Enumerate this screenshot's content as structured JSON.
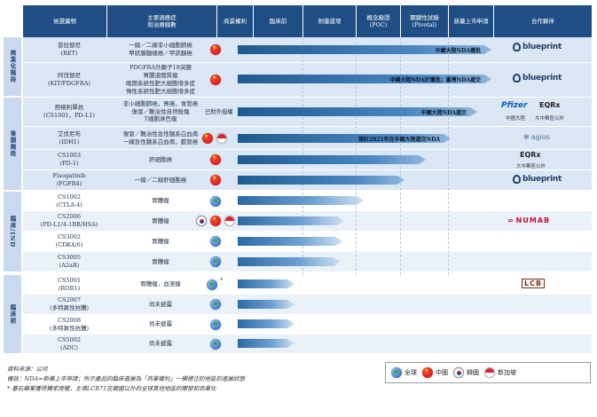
{
  "header": {
    "col_drug": "候選藥物",
    "col_indication": [
      "主要適應症",
      "和治療線數"
    ],
    "col_rights": "商業權利",
    "col_preclinical": "臨床前",
    "col_dose_escalation": "劑量遞增",
    "col_poc": [
      "概念驗證",
      "(POC)"
    ],
    "col_pivotal": [
      "關鍵性試驗",
      "(Pivotal)"
    ],
    "col_nda": "新藥上市申請",
    "col_partners": "合作夥伴"
  },
  "groups": {
    "commercial": "商業化階段",
    "late_stage": "後期階段",
    "clinical_ind": "臨床/IND",
    "early_clinical": "臨床前"
  },
  "rows": [
    {
      "drug": [
        "普拉替尼",
        "(RET)"
      ],
      "indication": [
        "一線／二線非小細胞肺癌",
        "甲狀腺髓樣癌／甲狀腺癌"
      ],
      "bar_label": "中國大陸NDA獲批",
      "progress_stage": "NDA approved"
    },
    {
      "drug": [
        "阿伐替尼",
        "(KIT/PDGFRA)"
      ],
      "indication": [
        "PDGFRA外顯子18突變",
        "胃腸道間質瘤",
        "晚期系統性肥大細胞增多症",
        "惰性系統性肥大細胞增多症"
      ],
      "bar_label": "中國大陸NDA於獲批；臺灣NDA遞交",
      "progress_stage": "NDA"
    },
    {
      "drug": [
        "舒格利單抗",
        "(CS1001，PD-L1)"
      ],
      "indication": [
        "非小細胞肺癌，胃癌，食管癌",
        "復發／難治性自然殺傷",
        "T細胞淋巴瘤"
      ],
      "rights_text": "已對外授權",
      "bar_label": "中國大陸NDA遞交",
      "progress_stage": "NDA submitted"
    },
    {
      "drug": [
        "艾伏尼布",
        "(IDH1)"
      ],
      "indication": [
        "復發／難治性急性髓系白血病",
        "一線急性髓系白血病，膽管癌"
      ],
      "bar_label": "預計2021年在中國大陸遞交NDA",
      "progress_stage": "Pivotal"
    },
    {
      "drug": [
        "CS1003",
        "(PD-1)"
      ],
      "indication": [
        "肝細胞癌"
      ],
      "progress_stage": "Pivotal"
    },
    {
      "drug": [
        "Fisogatinib",
        "(FGFR4)"
      ],
      "indication": [
        "一線／二線肝細胞癌"
      ],
      "progress_stage": "POC"
    },
    {
      "drug": [
        "CS1002",
        "(CTLA-4)"
      ],
      "indication": [
        "實體瘤"
      ],
      "progress_stage": "POC"
    },
    {
      "drug": [
        "CS2006",
        "(PD-L1/4-1BB/HSA)"
      ],
      "indication": [
        "實體瘤"
      ],
      "progress_stage": "Dose escalation"
    },
    {
      "drug": [
        "CS3002",
        "(CDK4/6)"
      ],
      "indication": [
        "實體瘤"
      ],
      "progress_stage": "Dose escalation"
    },
    {
      "drug": [
        "CS3005",
        "(A2aR)"
      ],
      "indication": [
        "實體瘤"
      ],
      "progress_stage": "Dose escalation"
    },
    {
      "drug": [
        "CS5001",
        "(ROR1)"
      ],
      "indication": [
        "實體瘤，血液瘤"
      ],
      "star": "*",
      "progress_stage": "Preclinical"
    },
    {
      "drug": [
        "CS2007",
        "(多特異性抗體)"
      ],
      "indication": [
        "尚未披露"
      ],
      "progress_stage": "Preclinical"
    },
    {
      "drug": [
        "CS2008",
        "(多特異性抗體)"
      ],
      "indication": [
        "尚未披露"
      ],
      "progress_stage": "Preclinical"
    },
    {
      "drug": [
        "CS5002",
        "(ADC)"
      ],
      "indication": [
        "尚未披露"
      ],
      "progress_stage": "Preclinical"
    }
  ],
  "partners": {
    "blueprint": "blueprint",
    "pfizer": "Pfizer",
    "eqrx": "EQRx",
    "agios": "agios",
    "numab": "NUMAB",
    "lcb": "LCB",
    "sub_china": "中國大陸",
    "sub_outside": "大中華區以外"
  },
  "footer": {
    "source": "資料來源：公司",
    "note": "備註：NDA=新藥上市申請；所示產品的臨床進展為「商業權利」一欄標注的地區的進展狀態",
    "footnote": "* 基石藥業獲得獨家授權，主導LCB71在韓國以外的全球其他地區的開發和商業化"
  },
  "legend": {
    "global": "全球",
    "china": "中國",
    "korea": "韓國",
    "singapore": "新加坡"
  },
  "colors": {
    "header": "#1f4e85",
    "row_shade": "#dbe7f5",
    "group": "#c9d9ee",
    "bar_dark": "#1f5a90",
    "bar_light": "#8fb6dd"
  }
}
